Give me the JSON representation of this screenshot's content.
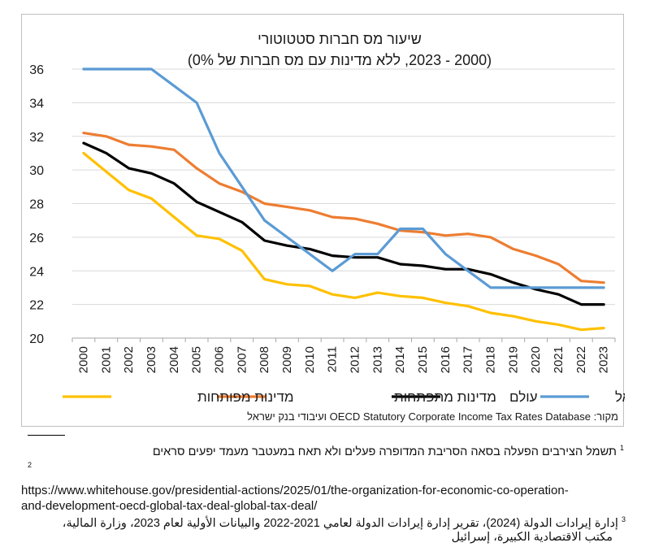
{
  "chart_data": {
    "type": "line",
    "title": "שיעור מס חברות סטטוטורי",
    "subtitle": "(2000 - 2023, ללא מדינות עם מס חברות של 0%)",
    "x": [
      "2000",
      "2001",
      "2002",
      "2003",
      "2004",
      "2005",
      "2006",
      "2007",
      "2008",
      "2009",
      "2010",
      "2011",
      "2012",
      "2013",
      "2014",
      "2015",
      "2016",
      "2017",
      "2018",
      "2019",
      "2020",
      "2021",
      "2022",
      "2023"
    ],
    "ylim": [
      20,
      36
    ],
    "yticks": [
      "20",
      "22",
      "24",
      "26",
      "28",
      "30",
      "32",
      "34",
      "36"
    ],
    "grid": true,
    "legend_position": "bottom",
    "series": [
      {
        "name": "ישראל",
        "color": "#5b9bd5",
        "values": [
          36,
          36,
          36,
          36,
          35,
          34,
          31,
          29,
          27,
          26,
          25,
          24,
          25,
          25,
          26.5,
          26.5,
          25,
          24,
          23,
          23,
          23,
          23,
          23,
          23
        ]
      },
      {
        "name": "עולם",
        "color": "#000000",
        "values": [
          31.6,
          31,
          30.1,
          29.8,
          29.2,
          28.1,
          27.5,
          26.9,
          25.8,
          25.5,
          25.3,
          24.9,
          24.8,
          24.8,
          24.4,
          24.3,
          24.1,
          24.1,
          23.8,
          23.3,
          22.9,
          22.6,
          22,
          22
        ]
      },
      {
        "name": "מדינות מתפתחות",
        "color": "#ed7d31",
        "values": [
          32.2,
          32,
          31.5,
          31.4,
          31.2,
          30.1,
          29.2,
          28.7,
          28,
          27.8,
          27.6,
          27.2,
          27.1,
          26.8,
          26.4,
          26.3,
          26.1,
          26.2,
          26,
          25.3,
          24.9,
          24.4,
          23.4,
          23.3
        ]
      },
      {
        "name": "מדינות מפותחות",
        "color": "#ffc000",
        "values": [
          31,
          29.9,
          28.8,
          28.3,
          27.2,
          26.1,
          25.9,
          25.2,
          23.5,
          23.2,
          23.1,
          22.6,
          22.4,
          22.7,
          22.5,
          22.4,
          22.1,
          21.9,
          21.5,
          21.3,
          21,
          20.8,
          20.5,
          20.6
        ]
      }
    ],
    "source": "מקור: OECD Statutory Corporate Income Tax Rates Database ועיבודי בנק ישראל"
  },
  "footnotes": {
    "fn1_num": "1",
    "fn1_text": "תשמל הצירבים הפעלה בסאה הסריבת המדופרה פעלים ולא תאח במעטבר מעמד יפעים סראים",
    "fn2_num": "2",
    "fn2_url": "https://www.whitehouse.gov/presidential-actions/2025/01/the-organization-for-economic-co-operation-",
    "fn2_url_cont": "and-development-oecd-global-tax-deal-global-tax-deal/",
    "fn3_num": "3",
    "fn3_line1": "إدارة إيرادات الدولة (2024)، تقرير إدارة إيرادات الدولة لعامي 2021-2022 والبيانات الأولية لعام 2023، وزارة المالية،",
    "fn3_line2": "مكتب الاقتصادية الكبيرة، إسرائيل"
  }
}
